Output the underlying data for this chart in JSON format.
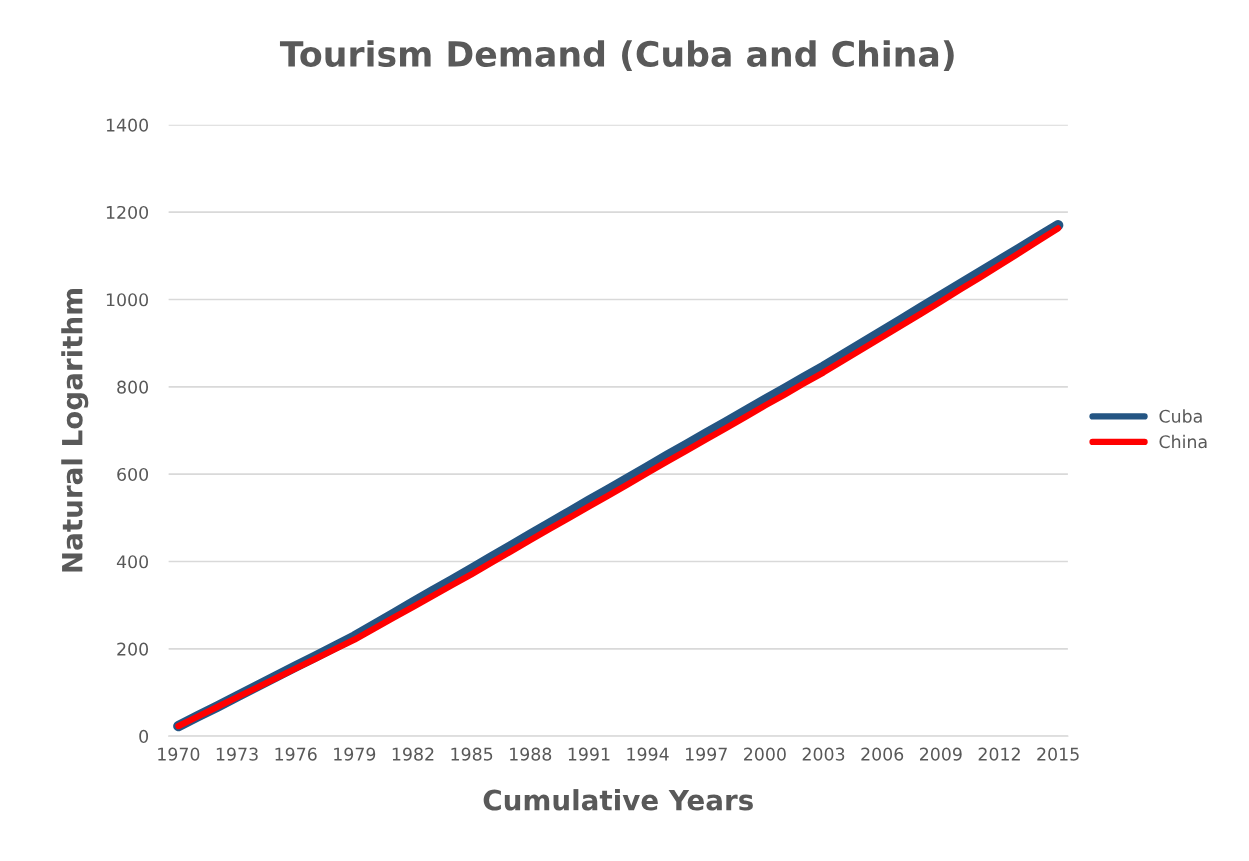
{
  "chart_data": {
    "type": "line",
    "title": "Tourism Demand (Cuba and China)",
    "xlabel": "Cumulative Years",
    "ylabel": "Natural Logarithm",
    "categories": [
      "1970",
      null,
      null,
      "1973",
      null,
      null,
      "1976",
      null,
      null,
      "1979",
      null,
      null,
      "1982",
      null,
      null,
      "1985",
      null,
      null,
      "1988",
      null,
      null,
      "1991",
      null,
      null,
      "1994",
      null,
      null,
      "1997",
      null,
      null,
      "2000",
      null,
      null,
      "2003",
      null,
      null,
      "2006",
      null,
      null,
      "2009",
      null,
      null,
      "2012",
      null,
      null,
      "2015"
    ],
    "series": [
      {
        "name": "Cuba",
        "color": "#245583",
        "values": [
          23,
          46,
          68,
          91,
          114,
          137,
          160,
          182,
          205,
          228,
          254,
          280,
          306,
          332,
          357,
          383,
          409,
          435,
          461,
          487,
          513,
          539,
          564,
          590,
          616,
          642,
          667,
          693,
          718,
          744,
          770,
          795,
          821,
          846,
          873,
          900,
          927,
          954,
          981,
          1008,
          1035,
          1062,
          1089,
          1116,
          1143,
          1170
        ]
      },
      {
        "name": "China",
        "color": "#ff0000",
        "values": [
          23,
          45,
          67,
          89,
          111,
          133,
          155,
          177,
          199,
          221,
          246,
          271,
          296,
          321,
          346,
          371,
          397,
          423,
          449,
          475,
          500,
          526,
          551,
          577,
          603,
          629,
          654,
          680,
          705,
          731,
          757,
          782,
          808,
          833,
          860,
          887,
          914,
          941,
          968,
          995,
          1023,
          1050,
          1078,
          1106,
          1135,
          1163
        ]
      }
    ],
    "ylim": [
      0,
      1400
    ],
    "yticks": [
      0,
      200,
      400,
      600,
      800,
      1000,
      1200,
      1400
    ],
    "grid": "y",
    "legend": "right",
    "marker": "none",
    "line_style": "solid"
  }
}
